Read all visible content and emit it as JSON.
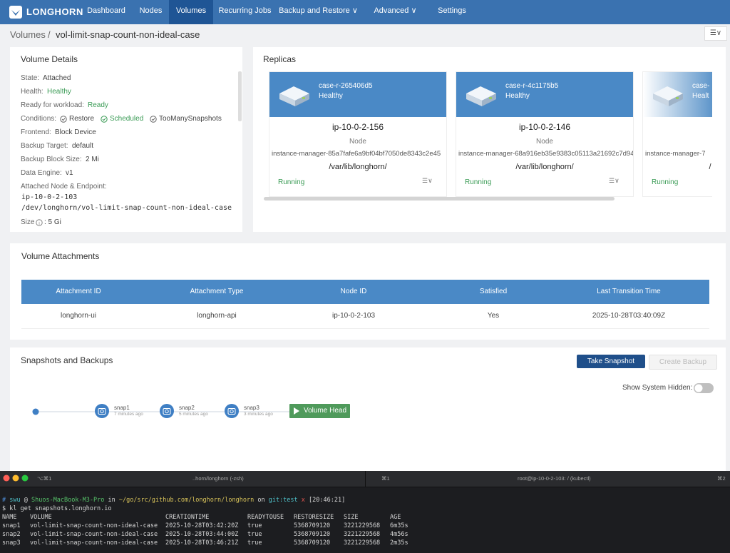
{
  "nav": {
    "brand": "LONGHORN",
    "items": [
      "Dashboard",
      "Nodes",
      "Volumes",
      "Recurring Jobs",
      "Backup and Restore",
      "Advanced",
      "Settings"
    ]
  },
  "breadcrumb": {
    "parent": "Volumes",
    "separator": "/",
    "current": "vol-limit-snap-count-non-ideal-case"
  },
  "volume_details": {
    "title": "Volume Details",
    "fields": [
      {
        "label": "State:",
        "value": "Attached"
      },
      {
        "label": "Health:",
        "value": "Healthy"
      },
      {
        "label": "Ready for workload:",
        "value": "Ready"
      },
      {
        "label": "Conditions:",
        "value": [
          "Restore",
          "Scheduled",
          "TooManySnapshots"
        ]
      },
      {
        "label": "Frontend:",
        "value": "Block Device"
      },
      {
        "label": "Backup Target:",
        "value": "default"
      },
      {
        "label": "Backup Block Size:",
        "value": "2 Mi"
      },
      {
        "label": "Data Engine:",
        "value": "v1"
      },
      {
        "label": "Attached Node & Endpoint:"
      }
    ],
    "endpoint": [
      "ip-10-0-2-103",
      "/dev/longhorn/vol-limit-snap-count-non-ideal-case"
    ],
    "size_label": "Size",
    "size_value": ": 5 Gi"
  },
  "replicas": {
    "title": "Replicas",
    "items": [
      {
        "name": "case-r-265406d5",
        "status": "Healthy",
        "node": "ip-10-0-2-156",
        "node_label": "Node",
        "instance_manager": "instance-manager-85a7fafe6a9bf04bf7050de8343c2e45",
        "path": "/var/lib/longhorn/",
        "state": "Running"
      },
      {
        "name": "case-r-4c1175b5",
        "status": "Healthy",
        "node": "ip-10-0-2-146",
        "node_label": "Node",
        "instance_manager": "instance-manager-68a916eb35e9383c05113a21692c7d94",
        "path": "/var/lib/longhorn/",
        "state": "Running"
      },
      {
        "name": "case-",
        "status": "Healt",
        "instance_manager": "instance-manager-7",
        "path": "/",
        "state": "Running"
      }
    ]
  },
  "attachments": {
    "title": "Volume Attachments",
    "columns": [
      "Attachment ID",
      "Attachment Type",
      "Node ID",
      "Satisfied",
      "Last Transition Time"
    ],
    "rows": [
      [
        "longhorn-ui",
        "longhorn-api",
        "ip-10-0-2-103",
        "Yes",
        "2025-10-28T03:40:09Z"
      ]
    ]
  },
  "snapshots": {
    "title": "Snapshots and Backups",
    "take_snapshot": "Take Snapshot",
    "create_backup": "Create Backup",
    "show_hidden": "Show System Hidden:",
    "items": [
      {
        "name": "snap1",
        "age": "7 minutes ago"
      },
      {
        "name": "snap2",
        "age": "5 minutes ago"
      },
      {
        "name": "snap3",
        "age": "3 minutes ago"
      }
    ],
    "head": "Volume Head"
  },
  "terminal": {
    "tabs": [
      "⌥⌘1",
      "..horn/longhorn (-zsh)",
      "⌘1",
      "root@ip-10-0-2-103: / (kubectl)",
      "⌘2"
    ],
    "prompt": [
      "#",
      "swu",
      "@",
      "Shuos-MacBook-M3-Pro",
      "in",
      "~/go/src/github.com/longhorn/longhorn",
      "on",
      "git:test",
      "x",
      "[20:46:21]"
    ],
    "command": "$ kl get snapshots.longhorn.io",
    "columns": [
      "NAME",
      "VOLUME",
      "CREATIONTIME",
      "READYTOUSE",
      "RESTORESIZE",
      "SIZE",
      "AGE"
    ],
    "rows": [
      [
        "snap1",
        "vol-limit-snap-count-non-ideal-case",
        "2025-10-28T03:42:20Z",
        "true",
        "5368709120",
        "3221229568",
        "6m35s"
      ],
      [
        "snap2",
        "vol-limit-snap-count-non-ideal-case",
        "2025-10-28T03:44:00Z",
        "true",
        "5368709120",
        "3221229568",
        "4m56s"
      ],
      [
        "snap3",
        "vol-limit-snap-count-non-ideal-case",
        "2025-10-28T03:46:21Z",
        "true",
        "5368709120",
        "3221229568",
        "2m35s"
      ]
    ]
  }
}
